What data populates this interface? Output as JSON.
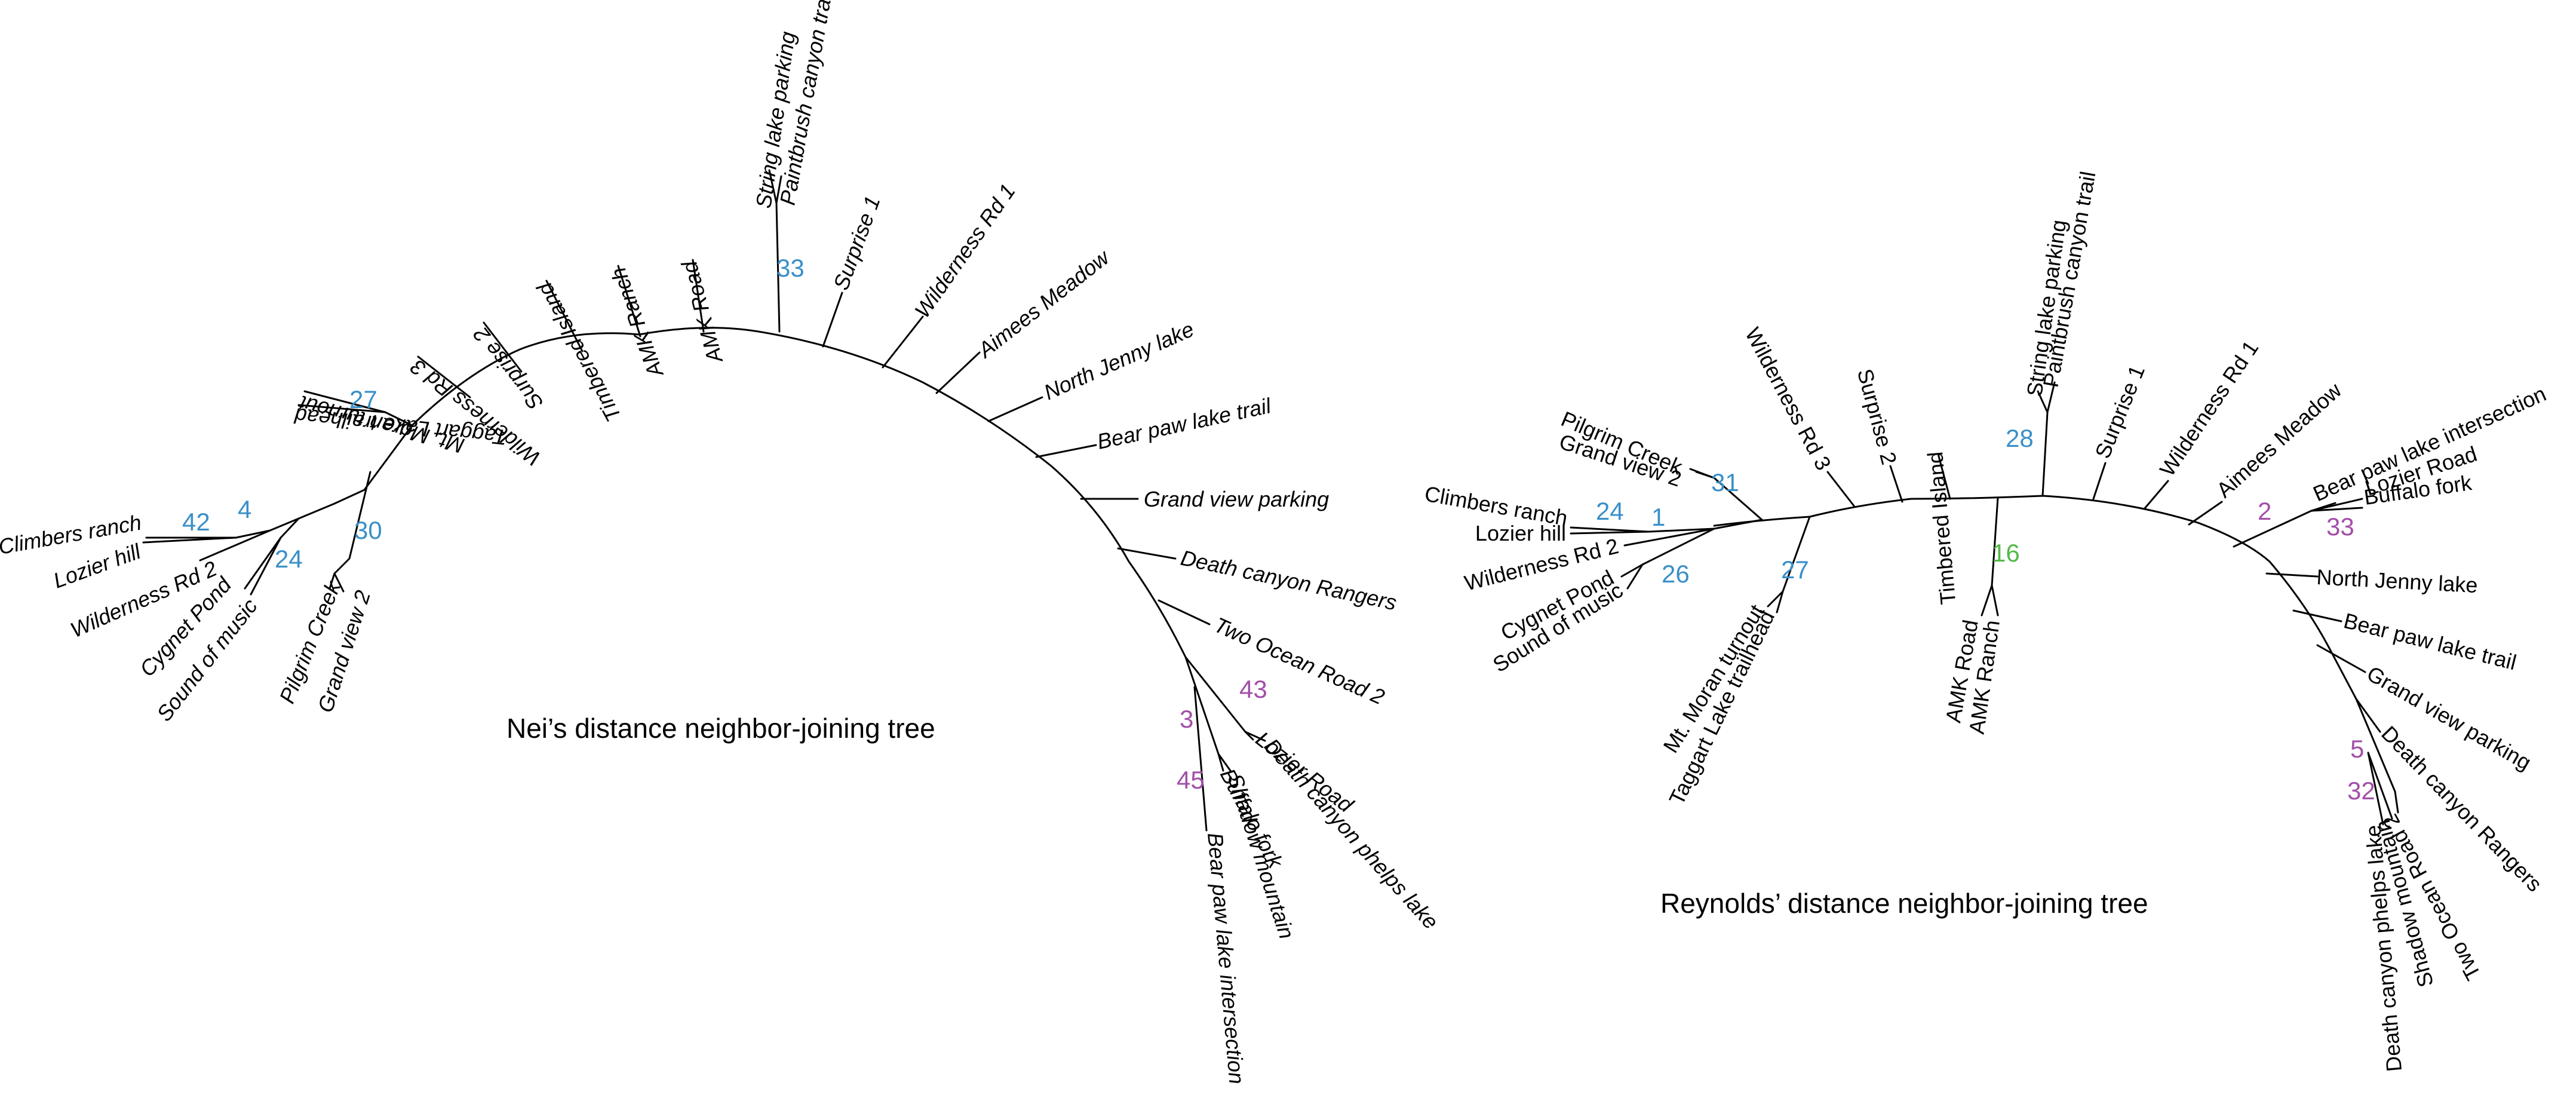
{
  "colors": {
    "branch": "#000000",
    "bootstrap_blue": "#3a8fc8",
    "bootstrap_purple": "#a24fa8",
    "bootstrap_green": "#54b848"
  },
  "trees": [
    {
      "title": "Nei’s distance neighbor-joining tree",
      "leaves": [
        "String lake parking",
        "Paintbrush canyon trail",
        "AMK Road",
        "AMK Ranch",
        "Timbered Island",
        "Surprise 2",
        "Wilderness Rd 3",
        "Mt. Moran turnout",
        "Taggart Lake trailhead",
        "Climbers ranch",
        "Lozier hill",
        "Wilderness Rd 2",
        "Cygnet Pond",
        "Sound of music",
        "Pilgrim Creek",
        "Grand view 2",
        "Surprise 1",
        "Wilderness Rd 1",
        "Aimees Meadow",
        "North Jenny lake",
        "Bear paw lake trail",
        "Grand view parking",
        "Death canyon Rangers",
        "Two Ocean Road 2",
        "Lozier Road",
        "Death canyon phelps lake",
        "Buffalo fork",
        "Shadow mountain",
        "Bear paw lake intersection"
      ],
      "bootstrap": [
        "33",
        "27",
        "42",
        "4",
        "24",
        "30",
        "43",
        "3",
        "45"
      ]
    },
    {
      "title": "Reynolds’ distance neighbor-joining tree",
      "leaves": [
        "String lake parking",
        "Paintbrush canyon trail",
        "Timbered Island",
        "Surprise 2",
        "Wilderness Rd 3",
        "Pilgrim Creek",
        "Grand view 2",
        "Climbers ranch",
        "Lozier hill",
        "Wilderness Rd 2",
        "Cygnet Pond",
        "Sound of music",
        "Mt. Moran turnout",
        "Taggart Lake trailhead",
        "AMK Road",
        "AMK Ranch",
        "Surprise 1",
        "Wilderness Rd 1",
        "Aimees Meadow",
        "Bear paw lake intersection",
        "Lozier Road",
        "Buffalo fork",
        "North Jenny lake",
        "Bear paw lake trail",
        "Grand view parking",
        "Death canyon Rangers",
        "Two Ocean Road 2",
        "Shadow mountain",
        "Death canyon phelps lake"
      ],
      "bootstrap": [
        "28",
        "31",
        "24",
        "1",
        "26",
        "27",
        "16",
        "2",
        "33",
        "5",
        "32"
      ]
    }
  ]
}
